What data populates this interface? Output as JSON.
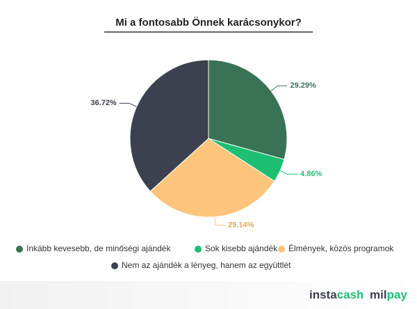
{
  "chart_data": {
    "type": "pie",
    "title": "Mi a fontosabb Önnek karácsonykor?",
    "categories": [
      "Inkább kevesebb, de minőségi ajándék",
      "Sok kisebb ajándék",
      "Élmények, közös programok",
      "Nem az ajándék a lényeg, hanem az együttlét"
    ],
    "values": [
      29.29,
      4.86,
      29.14,
      36.72
    ],
    "value_labels": [
      "29.29%",
      "4.86%",
      "29.14%",
      "36.72%"
    ],
    "colors": [
      "#3a7256",
      "#1dbf73",
      "#fdc57b",
      "#3d404e"
    ]
  },
  "brands": [
    [
      "insta",
      "cash"
    ],
    [
      "mil",
      "pay"
    ]
  ]
}
